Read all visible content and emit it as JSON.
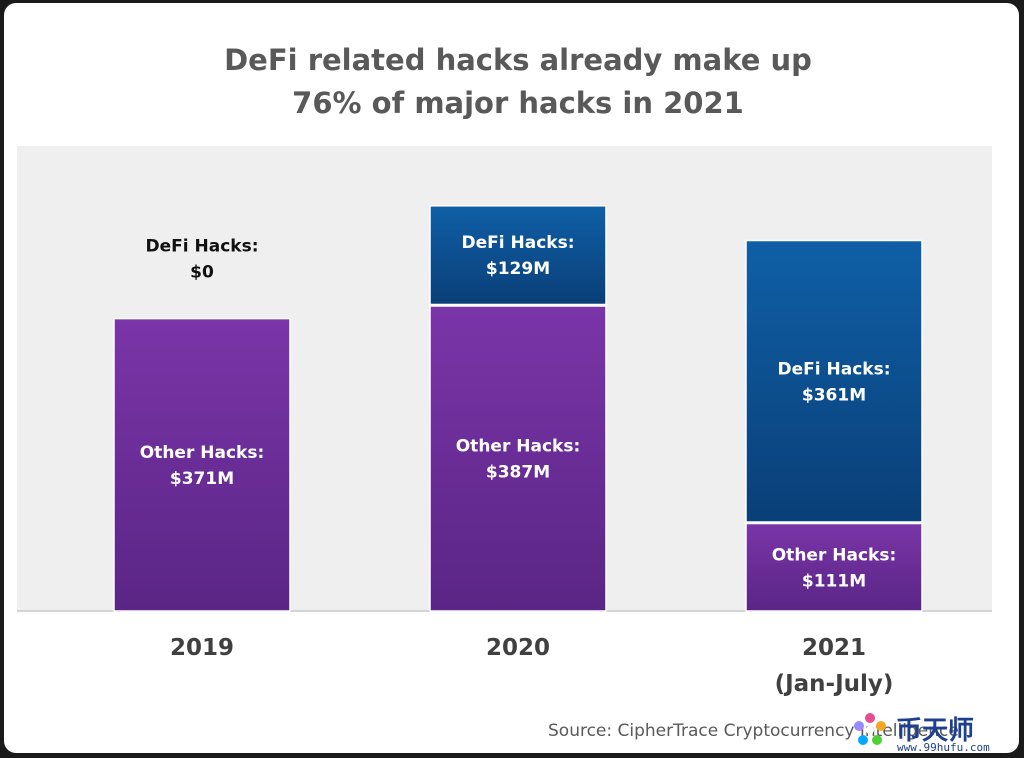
{
  "title_lines": [
    "DeFi related hacks already make up",
    "76% of major hacks in 2021"
  ],
  "source": "Source: CipherTrace Cryptocurrency Intelligence",
  "watermark": {
    "text": "币天师",
    "url": "www.99hufu.com"
  },
  "colors": {
    "defi": "#0e5aa0",
    "other": "#7030a0",
    "plot_bg": "#efefef"
  },
  "chart_data": {
    "type": "bar",
    "stacked": true,
    "title": "DeFi related hacks already make up 76% of major hacks in 2021",
    "xlabel": "",
    "ylabel": "",
    "ylim": [
      0,
      590
    ],
    "grid": false,
    "categories": [
      {
        "name": "2019",
        "sub": ""
      },
      {
        "name": "2020",
        "sub": ""
      },
      {
        "name": "2021",
        "sub": "(Jan-July)"
      }
    ],
    "series": [
      {
        "name": "Other Hacks",
        "values": [
          371,
          387,
          111
        ],
        "label_lines": [
          [
            "Other Hacks:",
            "$371M"
          ],
          [
            "Other Hacks:",
            "$387M"
          ],
          [
            "Other Hacks:",
            "$111M"
          ]
        ]
      },
      {
        "name": "DeFi Hacks",
        "values": [
          0,
          129,
          361
        ],
        "label_lines": [
          [
            "DeFi Hacks:",
            "$0"
          ],
          [
            "DeFi Hacks:",
            "$129M"
          ],
          [
            "DeFi Hacks:",
            "$361M"
          ]
        ]
      }
    ]
  }
}
